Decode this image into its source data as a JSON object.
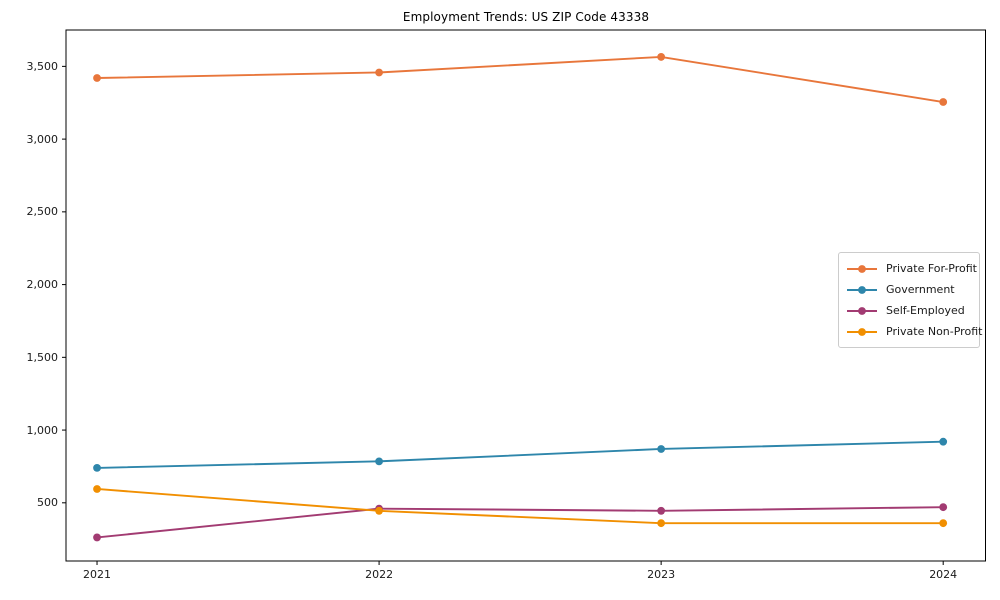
{
  "chart_data": {
    "type": "line",
    "title": "Employment Trends: US ZIP Code 43338",
    "x": [
      2021,
      2022,
      2023,
      2024
    ],
    "x_tick_labels": [
      "2021",
      "2022",
      "2023",
      "2024"
    ],
    "series": [
      {
        "name": "Private For-Profit",
        "color": "#E8763B",
        "values": [
          3420,
          3458,
          3565,
          3255
        ]
      },
      {
        "name": "Government",
        "color": "#2E86AB",
        "values": [
          740,
          785,
          870,
          920
        ]
      },
      {
        "name": "Self-Employed",
        "color": "#A23B72",
        "values": [
          262,
          460,
          445,
          470
        ]
      },
      {
        "name": "Private Non-Profit",
        "color": "#F18F01",
        "values": [
          595,
          445,
          360,
          360
        ]
      }
    ],
    "yticks": [
      500,
      1000,
      1500,
      2000,
      2500,
      3000,
      3500
    ],
    "ytick_labels": [
      "500",
      "1,000",
      "1,500",
      "2,000",
      "2,500",
      "3,000",
      "3,500"
    ],
    "xlim": [
      2020.89,
      2024.15
    ],
    "ylim": [
      100,
      3750
    ],
    "grid": false,
    "legend_position": "center-right",
    "xlabel": "",
    "ylabel": "",
    "axis_color": "#000000"
  }
}
